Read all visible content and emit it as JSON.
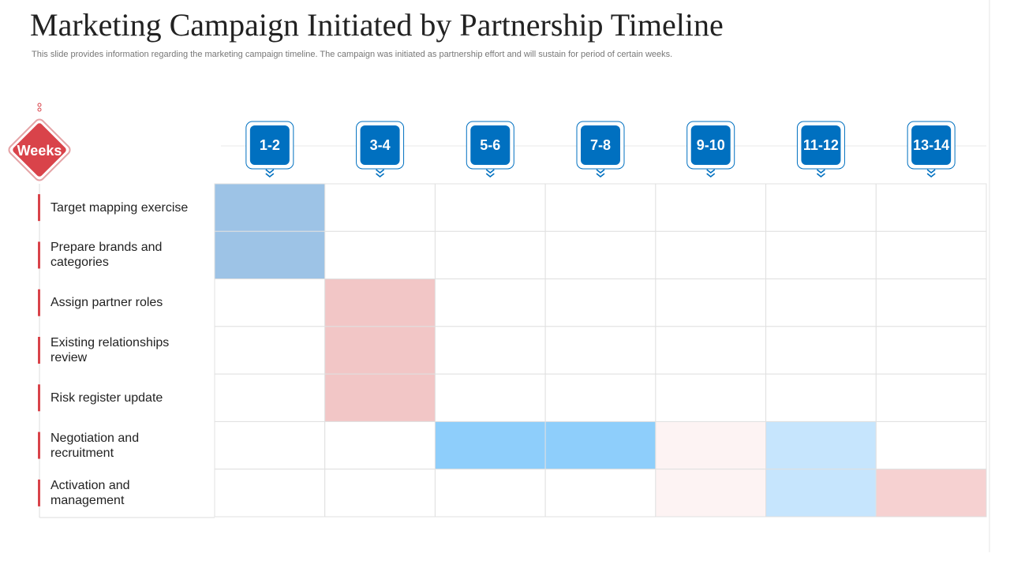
{
  "header": {
    "title": "Marketing Campaign Initiated by Partnership Timeline",
    "subtitle": "This slide provides information regarding the marketing campaign timeline. The campaign was initiated as partnership effort and will sustain for period of certain weeks."
  },
  "timeline": {
    "label": "Weeks",
    "weeks": [
      "1-2",
      "3-4",
      "5-6",
      "7-8",
      "9-10",
      "11-12",
      "13-14"
    ],
    "tasks": [
      {
        "name": "Target mapping exercise",
        "fills": [
          "#9dc3e6",
          null,
          null,
          null,
          null,
          null,
          null
        ]
      },
      {
        "name": "Prepare brands and categories",
        "fills": [
          "#9dc3e6",
          null,
          null,
          null,
          null,
          null,
          null
        ]
      },
      {
        "name": "Assign partner roles",
        "fills": [
          null,
          "#f2c6c6",
          null,
          null,
          null,
          null,
          null
        ]
      },
      {
        "name": "Existing relationships review",
        "fills": [
          null,
          "#f2c6c6",
          null,
          null,
          null,
          null,
          null
        ]
      },
      {
        "name": "Risk register update",
        "fills": [
          null,
          "#f2c6c6",
          null,
          null,
          null,
          null,
          null
        ]
      },
      {
        "name": "Negotiation and recruitment",
        "fills": [
          null,
          null,
          "#8ecefb",
          "#8ecefb",
          "#fdf3f3",
          "#c6e5fd",
          null
        ]
      },
      {
        "name": "Activation and management",
        "fills": [
          null,
          null,
          null,
          null,
          "#fdf3f3",
          "#c6e5fd",
          "#f6d1d1"
        ]
      }
    ]
  }
}
